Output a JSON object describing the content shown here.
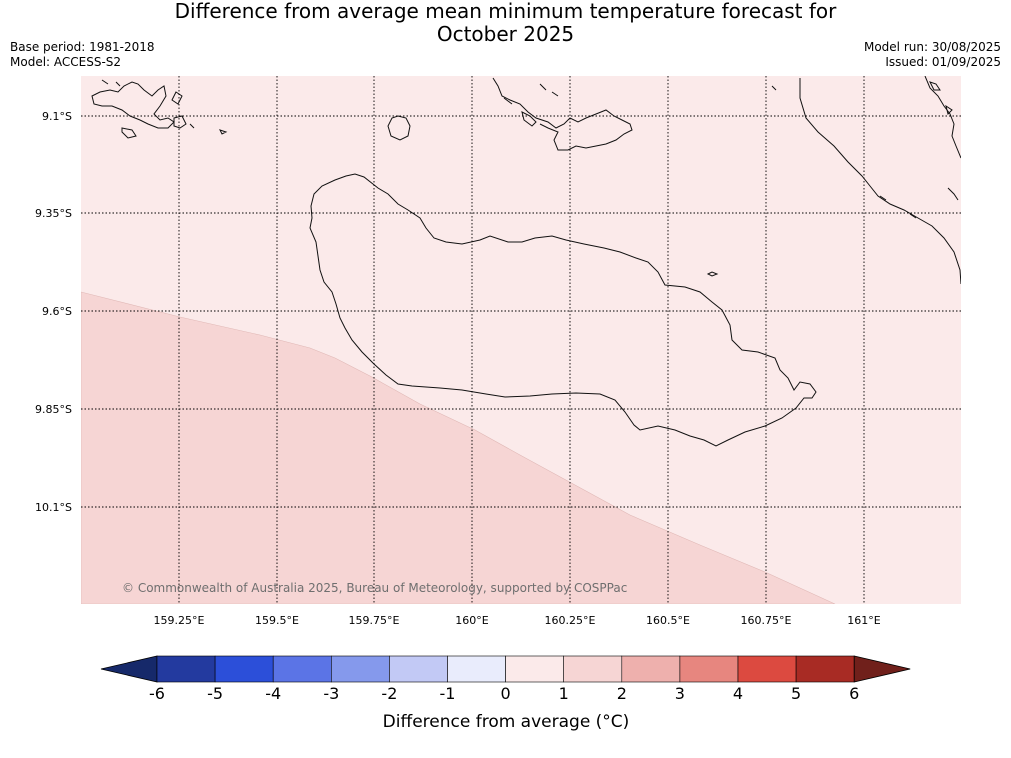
{
  "header": {
    "title_line1": "Difference from average mean minimum temperature forecast for",
    "title_line2": "October 2025",
    "base_period": "Base period: 1981-2018",
    "model": "Model: ACCESS-S2",
    "model_run": "Model run: 30/08/2025",
    "issued": "Issued: 01/09/2025"
  },
  "map": {
    "lon_labels": [
      "159.25°E",
      "159.5°E",
      "159.75°E",
      "160°E",
      "160.25°E",
      "160.5°E",
      "160.75°E",
      "161°E"
    ],
    "lat_labels": [
      "9.1°S",
      "9.35°S",
      "9.6°S",
      "9.85°S",
      "10.1°S"
    ],
    "copyright": "© Commonwealth of Australia 2025, Bureau of Meteorology, supported by COSPPac",
    "field_categories": [
      "0 to 1",
      "1 to 2"
    ],
    "field_colors": {
      "0 to 1": "#fbeaea",
      "1 to 2": "#f6d5d4"
    }
  },
  "colorbar": {
    "tick_labels": [
      "-6",
      "-5",
      "-4",
      "-3",
      "-2",
      "-1",
      "0",
      "1",
      "2",
      "3",
      "4",
      "5",
      "6"
    ],
    "colors": [
      "#233a9f",
      "#2c4fd9",
      "#5b74e6",
      "#8599ec",
      "#c2c9f5",
      "#e9ecfc",
      "#fbeaea",
      "#f6d5d4",
      "#eeb0ad",
      "#e7867f",
      "#dc4a40",
      "#a82b24"
    ],
    "under_color": "#16296a",
    "over_color": "#70201b",
    "label": "Difference from average (°C)"
  }
}
